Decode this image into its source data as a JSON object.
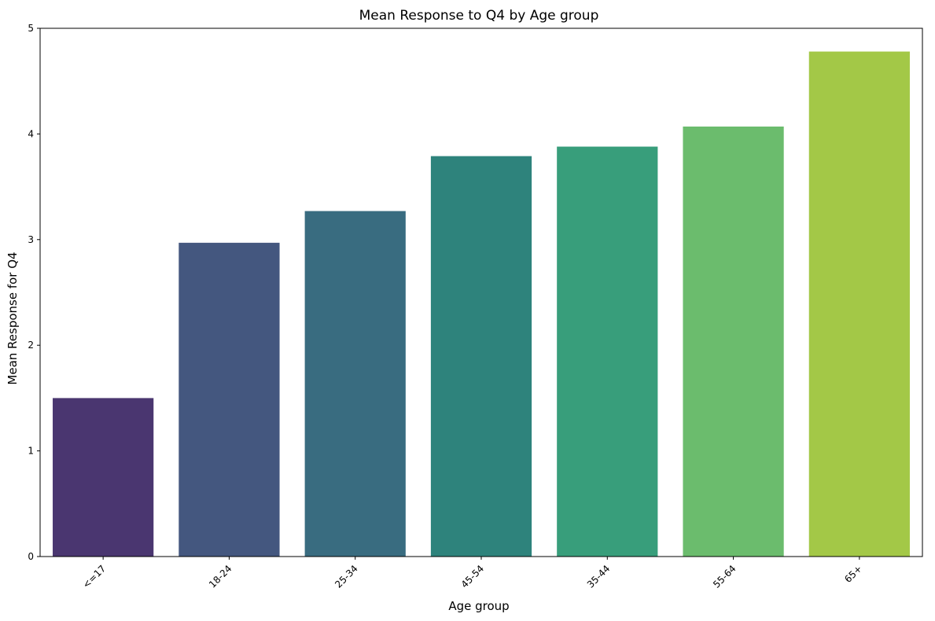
{
  "chart_data": {
    "type": "bar",
    "title": "Mean Response to Q4 by Age group",
    "xlabel": "Age group",
    "ylabel": "Mean Response for Q4",
    "categories": [
      "<=17",
      "18-24",
      "25-34",
      "45-54",
      "35-44",
      "55-64",
      "65+"
    ],
    "values": [
      1.5,
      2.97,
      3.27,
      3.79,
      3.88,
      4.07,
      4.78
    ],
    "ylim": [
      0,
      5
    ],
    "yticks": [
      0,
      1,
      2,
      3,
      4,
      5
    ],
    "grid": false,
    "colors": [
      "#4a3670",
      "#44577f",
      "#396c80",
      "#2e837c",
      "#389e7b",
      "#6bbc6d",
      "#a3c847"
    ]
  }
}
